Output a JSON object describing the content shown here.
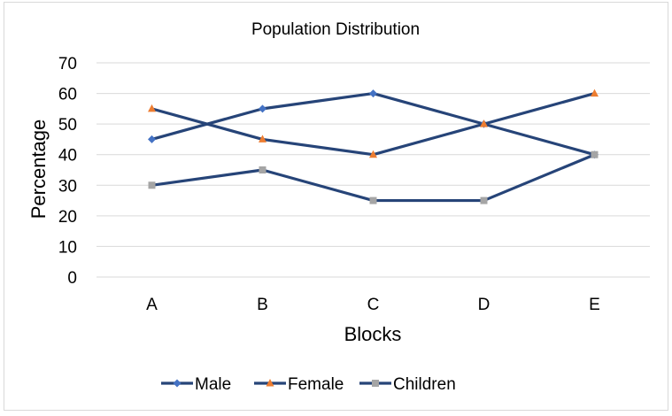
{
  "chart_data": {
    "type": "line",
    "title": "Population Distribution",
    "xlabel": "Blocks",
    "ylabel": "Percentage",
    "categories": [
      "A",
      "B",
      "C",
      "D",
      "E"
    ],
    "ylim": [
      0,
      70
    ],
    "yticks": [
      0,
      10,
      20,
      30,
      40,
      50,
      60,
      70
    ],
    "grid": true,
    "legend_position": "bottom",
    "series": [
      {
        "name": "Male",
        "values": [
          45,
          55,
          60,
          50,
          40
        ],
        "line_color": "#264478",
        "marker": "diamond",
        "marker_color": "#4472C4"
      },
      {
        "name": "Female",
        "values": [
          55,
          45,
          40,
          50,
          60
        ],
        "line_color": "#264478",
        "marker": "triangle",
        "marker_color": "#ED7D31"
      },
      {
        "name": "Children",
        "values": [
          30,
          35,
          25,
          25,
          40
        ],
        "line_color": "#264478",
        "marker": "square",
        "marker_color": "#A5A5A5"
      }
    ]
  }
}
